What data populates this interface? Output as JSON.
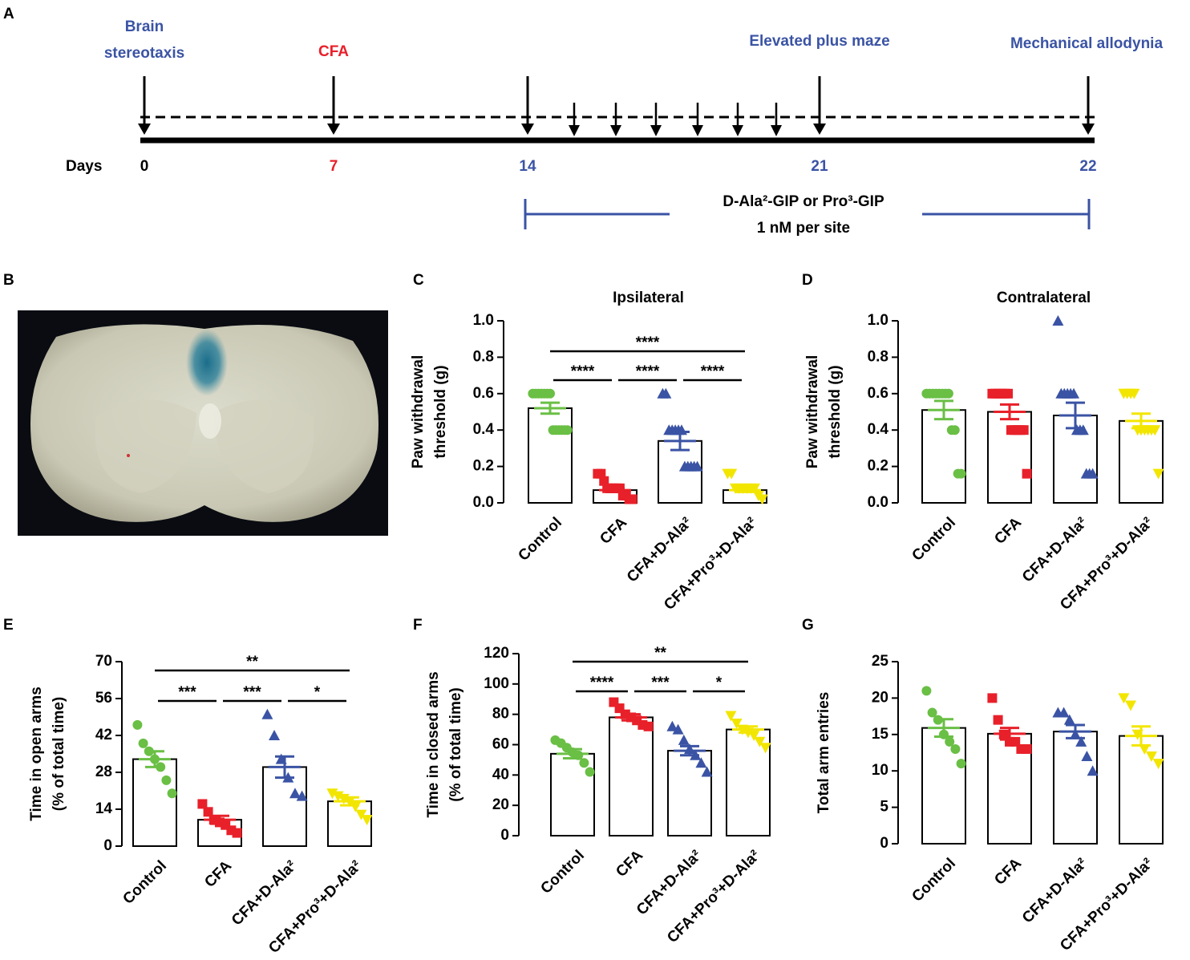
{
  "timeline": {
    "panel": "A",
    "days_label": "Days",
    "days": [
      {
        "label": "0",
        "color": "#000000"
      },
      {
        "label": "7",
        "color": "#e8202a"
      },
      {
        "label": "14",
        "color": "#3a53a4"
      },
      {
        "label": "21",
        "color": "#3a53a4"
      },
      {
        "label": "22",
        "color": "#3a53a4"
      }
    ],
    "events": [
      {
        "label": [
          "Brain",
          "stereotaxis"
        ],
        "color": "#3a53a4"
      },
      {
        "label": [
          "CFA"
        ],
        "color": "#e8202a"
      },
      {
        "label": [
          "Elevated plus maze"
        ],
        "color": "#3a53a4"
      },
      {
        "label": [
          "Mechanical allodynia"
        ],
        "color": "#3a53a4"
      }
    ],
    "treatment": [
      "D-Ala²-GIP or Pro³-GIP",
      "1 nM per site"
    ]
  },
  "photo_panel": "B",
  "chart_data": [
    {
      "type": "bar",
      "panel": "C",
      "title": "Ipsilateral",
      "ylabel": [
        "Paw withdrawal",
        "threshold (g)"
      ],
      "categories": [
        "Control",
        "CFA",
        "CFA+D-Ala²",
        "CFA+Pro³+D-Ala²"
      ],
      "colors": [
        "#6abf45",
        "#e8202a",
        "#3a53a4",
        "#f2e600"
      ],
      "markers": [
        "circle",
        "square",
        "triangle",
        "triangle-down"
      ],
      "values": [
        0.52,
        0.07,
        0.34,
        0.07
      ],
      "errors": [
        0.03,
        0.01,
        0.05,
        0.01
      ],
      "points": [
        [
          0.6,
          0.6,
          0.6,
          0.6,
          0.6,
          0.6,
          0.6,
          0.4,
          0.4,
          0.4,
          0.4,
          0.4,
          0.4
        ],
        [
          0.16,
          0.16,
          0.12,
          0.08,
          0.08,
          0.08,
          0.08,
          0.08,
          0.04,
          0.04,
          0.02,
          0.02
        ],
        [
          0.6,
          0.6,
          0.4,
          0.4,
          0.4,
          0.4,
          0.4,
          0.2,
          0.2,
          0.2,
          0.2,
          0.2
        ],
        [
          0.16,
          0.16,
          0.08,
          0.08,
          0.08,
          0.08,
          0.08,
          0.08,
          0.04,
          0.02
        ]
      ],
      "ylim": [
        0,
        1
      ],
      "yticks": [
        {
          "value": 0,
          "label": "0.0"
        },
        0.2,
        0.4,
        0.6,
        0.8,
        {
          "value": 1,
          "label": "1.0"
        }
      ],
      "annotations": [
        {
          "label": "****",
          "from": 0,
          "to": 3
        },
        {
          "label": "****",
          "from": 0,
          "to": 1
        },
        {
          "label": "****",
          "from": 1,
          "to": 2
        },
        {
          "label": "****",
          "from": 2,
          "to": 3
        }
      ]
    },
    {
      "type": "bar",
      "panel": "D",
      "title": "Contralateral",
      "ylabel": [
        "Paw withdrawal",
        "threshold (g)"
      ],
      "categories": [
        "Control",
        "CFA",
        "CFA+D-Ala²",
        "CFA+Pro³+D-Ala²"
      ],
      "colors": [
        "#6abf45",
        "#e8202a",
        "#3a53a4",
        "#f2e600"
      ],
      "markers": [
        "circle",
        "square",
        "triangle",
        "triangle-down"
      ],
      "values": [
        0.51,
        0.5,
        0.48,
        0.45
      ],
      "errors": [
        0.05,
        0.04,
        0.07,
        0.04
      ],
      "points": [
        [
          0.6,
          0.6,
          0.6,
          0.6,
          0.6,
          0.6,
          0.6,
          0.6,
          0.4,
          0.4,
          0.16,
          0.16
        ],
        [
          0.6,
          0.6,
          0.6,
          0.6,
          0.6,
          0.6,
          0.4,
          0.4,
          0.4,
          0.4,
          0.4,
          0.16
        ],
        [
          1,
          0.6,
          0.6,
          0.6,
          0.6,
          0.6,
          0.4,
          0.4,
          0.4,
          0.16,
          0.16,
          0.16
        ],
        [
          0.6,
          0.6,
          0.6,
          0.6,
          0.4,
          0.4,
          0.4,
          0.4,
          0.4,
          0.4,
          0.16
        ]
      ],
      "ylim": [
        0,
        1
      ],
      "yticks": [
        {
          "value": 0,
          "label": "0.0"
        },
        0.2,
        0.4,
        0.6,
        0.8,
        {
          "value": 1,
          "label": "1.0"
        }
      ],
      "annotations": []
    },
    {
      "type": "bar",
      "panel": "E",
      "ylabel": [
        "Time in open arms",
        "(% of total time)"
      ],
      "categories": [
        "Control",
        "CFA",
        "CFA+D-Ala²",
        "CFA+Pro³+D-Ala²"
      ],
      "colors": [
        "#6abf45",
        "#e8202a",
        "#3a53a4",
        "#f2e600"
      ],
      "markers": [
        "circle",
        "square",
        "triangle",
        "triangle-down"
      ],
      "values": [
        33,
        10,
        30,
        17
      ],
      "errors": [
        3,
        1.5,
        4,
        1.5
      ],
      "points": [
        [
          46,
          39,
          36,
          33,
          30,
          25,
          20
        ],
        [
          16,
          13,
          10,
          9,
          8,
          6,
          5
        ],
        [
          50,
          42,
          33,
          26,
          20,
          19
        ],
        [
          20,
          19,
          18,
          17,
          15,
          12,
          10
        ]
      ],
      "ylim": [
        0,
        70
      ],
      "yticks": [
        0,
        14,
        28,
        42,
        56,
        70
      ],
      "annotations": [
        {
          "label": "**",
          "from": 0,
          "to": 3
        },
        {
          "label": "***",
          "from": 0,
          "to": 1
        },
        {
          "label": "***",
          "from": 1,
          "to": 2
        },
        {
          "label": "*",
          "from": 2,
          "to": 3
        }
      ]
    },
    {
      "type": "bar",
      "panel": "F",
      "ylabel": [
        "Time in closed arms",
        "(% of total time)"
      ],
      "categories": [
        "Control",
        "CFA",
        "CFA+D-Ala²",
        "CFA+Pro³+D-Ala²"
      ],
      "colors": [
        "#6abf45",
        "#e8202a",
        "#3a53a4",
        "#f2e600"
      ],
      "markers": [
        "circle",
        "square",
        "triangle",
        "triangle-down"
      ],
      "values": [
        54,
        78,
        56,
        70
      ],
      "errors": [
        3,
        2,
        3,
        2
      ],
      "points": [
        [
          63,
          61,
          58,
          55,
          53,
          48,
          42
        ],
        [
          88,
          84,
          80,
          78,
          76,
          73,
          72
        ],
        [
          72,
          70,
          63,
          57,
          53,
          48,
          42
        ],
        [
          79,
          74,
          70,
          68,
          66,
          62,
          58
        ]
      ],
      "ylim": [
        0,
        120
      ],
      "yticks": [
        0,
        20,
        40,
        60,
        80,
        100,
        120
      ],
      "annotations": [
        {
          "label": "**",
          "from": 0,
          "to": 3
        },
        {
          "label": "****",
          "from": 0,
          "to": 1
        },
        {
          "label": "***",
          "from": 1,
          "to": 2
        },
        {
          "label": "*",
          "from": 2,
          "to": 3
        }
      ]
    },
    {
      "type": "bar",
      "panel": "G",
      "ylabel": [
        "Total arm entries"
      ],
      "categories": [
        "Control",
        "CFA",
        "CFA+D-Ala²",
        "CFA+Pro³+D-Ala²"
      ],
      "colors": [
        "#6abf45",
        "#e8202a",
        "#3a53a4",
        "#f2e600"
      ],
      "markers": [
        "circle",
        "square",
        "triangle",
        "triangle-down"
      ],
      "values": [
        15.9,
        15.1,
        15.4,
        14.8
      ],
      "errors": [
        1.2,
        0.8,
        0.9,
        1.3
      ],
      "points": [
        [
          21,
          18,
          17,
          15,
          14,
          13,
          11
        ],
        [
          20,
          17,
          15,
          14,
          14,
          13,
          13
        ],
        [
          18,
          18,
          17,
          15,
          14,
          12,
          10
        ],
        [
          20,
          19,
          15,
          13,
          12,
          11
        ]
      ],
      "ylim": [
        0,
        25
      ],
      "yticks": [
        0,
        5,
        10,
        15,
        20,
        25
      ],
      "annotations": []
    }
  ]
}
